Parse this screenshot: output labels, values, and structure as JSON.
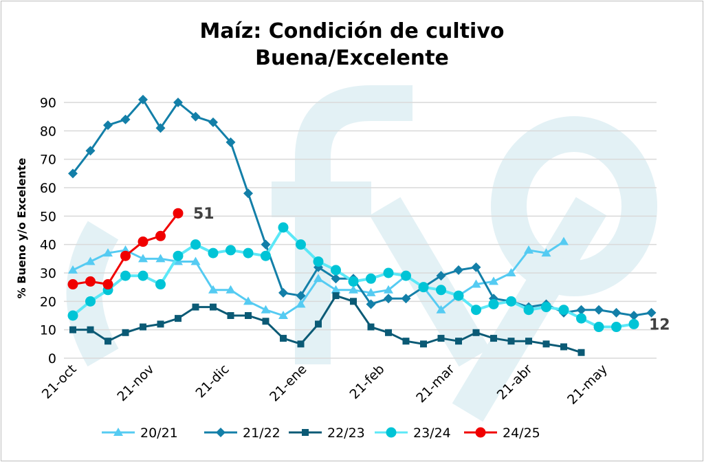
{
  "chart_data": {
    "type": "line",
    "title": [
      "Maíz: Condición de cultivo",
      "Buena/Excelente"
    ],
    "ylabel": "% Bueno y/o Excelente",
    "xlabel": "",
    "ylim": [
      0,
      90
    ],
    "yticks": [
      0,
      10,
      20,
      30,
      40,
      50,
      60,
      70,
      80,
      90
    ],
    "grid": true,
    "x_unit": "weeks since 21-oct",
    "xticks": [
      {
        "label": "21-oct",
        "week": 0
      },
      {
        "label": "21-nov",
        "week": 4.43
      },
      {
        "label": "21-dic",
        "week": 8.71
      },
      {
        "label": "21-ene",
        "week": 13.14
      },
      {
        "label": "21-feb",
        "week": 17.57
      },
      {
        "label": "21-mar",
        "week": 21.57
      },
      {
        "label": "21-abr",
        "week": 26.0
      },
      {
        "label": "21-may",
        "week": 30.29
      }
    ],
    "legend_position": "bottom",
    "watermark": "fyo",
    "series": [
      {
        "name": "20/21",
        "color": "#55CBF2",
        "line": "#55CBF2",
        "marker": "triangle",
        "values": [
          31,
          34,
          37,
          38,
          35,
          35,
          34,
          34,
          24,
          24,
          20,
          17,
          15,
          19,
          28,
          24,
          24,
          23,
          24,
          29,
          25,
          17,
          22,
          26,
          27,
          30,
          38,
          37,
          41
        ]
      },
      {
        "name": "21/22",
        "color": "#137FA8",
        "line": "#137FA8",
        "marker": "diamond",
        "values": [
          65,
          73,
          82,
          84,
          91,
          81,
          90,
          85,
          83,
          76,
          58,
          40,
          23,
          22,
          32,
          28,
          28,
          19,
          21,
          21,
          25,
          29,
          31,
          32,
          21,
          20,
          18,
          19,
          16,
          17,
          17,
          16,
          15,
          16
        ]
      },
      {
        "name": "22/23",
        "color": "#0B5A75",
        "line": "#0B5A75",
        "marker": "square",
        "values": [
          10,
          10,
          6,
          9,
          11,
          12,
          14,
          18,
          18,
          15,
          15,
          13,
          7,
          5,
          12,
          22,
          20,
          11,
          9,
          6,
          5,
          7,
          6,
          9,
          7,
          6,
          6,
          5,
          4,
          2
        ]
      },
      {
        "name": "23/24",
        "color": "#00C4D6",
        "line": "#5CE8F7",
        "marker": "circle",
        "values": [
          15,
          20,
          24,
          29,
          29,
          26,
          36,
          40,
          37,
          38,
          37,
          36,
          46,
          40,
          34,
          31,
          27,
          28,
          30,
          29,
          25,
          24,
          22,
          17,
          19,
          20,
          17,
          18,
          17,
          14,
          11,
          11,
          12
        ]
      },
      {
        "name": "24/25",
        "color": "#F00000",
        "line": "#F00000",
        "marker": "circle",
        "values": [
          26,
          27,
          26,
          36,
          41,
          43,
          51
        ]
      }
    ],
    "annotations": [
      {
        "text": "51",
        "series": "24/25"
      },
      {
        "text": "12",
        "series": "23/24"
      }
    ]
  }
}
